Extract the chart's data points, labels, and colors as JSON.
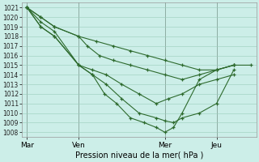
{
  "xlabel": "Pression niveau de la mer( hPa )",
  "ylim": [
    1007.5,
    1021.5
  ],
  "yticks": [
    1008,
    1009,
    1010,
    1011,
    1012,
    1013,
    1014,
    1015,
    1016,
    1017,
    1018,
    1019,
    1020,
    1021
  ],
  "xtick_labels": [
    "Mar",
    "Ven",
    "Mer",
    "Jeu"
  ],
  "xtick_positions": [
    0,
    30,
    80,
    110
  ],
  "xlim": [
    -3,
    133
  ],
  "line_color": "#2d6a2d",
  "bg_color": "#cceee8",
  "grid_color": "#99ccbb",
  "lines": [
    [
      [
        0,
        1021
      ],
      [
        8,
        1020
      ],
      [
        16,
        1019
      ],
      [
        30,
        1018
      ],
      [
        40,
        1017.5
      ],
      [
        50,
        1017
      ],
      [
        60,
        1016.5
      ],
      [
        70,
        1016
      ],
      [
        80,
        1015.5
      ],
      [
        90,
        1015
      ],
      [
        100,
        1014.5
      ],
      [
        110,
        1014.5
      ],
      [
        120,
        1015
      ],
      [
        130,
        1015
      ]
    ],
    [
      [
        0,
        1021
      ],
      [
        8,
        1020
      ],
      [
        16,
        1019
      ],
      [
        30,
        1018
      ],
      [
        35,
        1017
      ],
      [
        42,
        1016
      ],
      [
        50,
        1015.5
      ],
      [
        60,
        1015
      ],
      [
        70,
        1014.5
      ],
      [
        80,
        1014
      ],
      [
        90,
        1013.5
      ],
      [
        100,
        1014
      ],
      [
        110,
        1014.5
      ],
      [
        120,
        1015
      ]
    ],
    [
      [
        0,
        1021
      ],
      [
        8,
        1019.5
      ],
      [
        16,
        1018.5
      ],
      [
        30,
        1015
      ],
      [
        38,
        1014.5
      ],
      [
        46,
        1014
      ],
      [
        55,
        1013
      ],
      [
        65,
        1012
      ],
      [
        75,
        1011
      ],
      [
        82,
        1011.5
      ],
      [
        90,
        1012
      ],
      [
        100,
        1013
      ],
      [
        110,
        1013.5
      ],
      [
        120,
        1014
      ]
    ],
    [
      [
        0,
        1021
      ],
      [
        8,
        1019
      ],
      [
        16,
        1018
      ],
      [
        30,
        1015
      ],
      [
        38,
        1014
      ],
      [
        46,
        1013
      ],
      [
        55,
        1011.5
      ],
      [
        65,
        1010
      ],
      [
        75,
        1009.5
      ],
      [
        80,
        1009.2
      ],
      [
        85,
        1009
      ],
      [
        90,
        1009.5
      ],
      [
        100,
        1010
      ],
      [
        110,
        1011
      ],
      [
        120,
        1014.5
      ]
    ],
    [
      [
        0,
        1021
      ],
      [
        8,
        1019
      ],
      [
        16,
        1018
      ],
      [
        30,
        1015
      ],
      [
        38,
        1014
      ],
      [
        45,
        1012
      ],
      [
        52,
        1011
      ],
      [
        60,
        1009.5
      ],
      [
        68,
        1009
      ],
      [
        75,
        1008.5
      ],
      [
        80,
        1008
      ],
      [
        85,
        1008.5
      ],
      [
        90,
        1010
      ],
      [
        100,
        1013.5
      ],
      [
        110,
        1014.5
      ],
      [
        120,
        1015
      ]
    ]
  ]
}
